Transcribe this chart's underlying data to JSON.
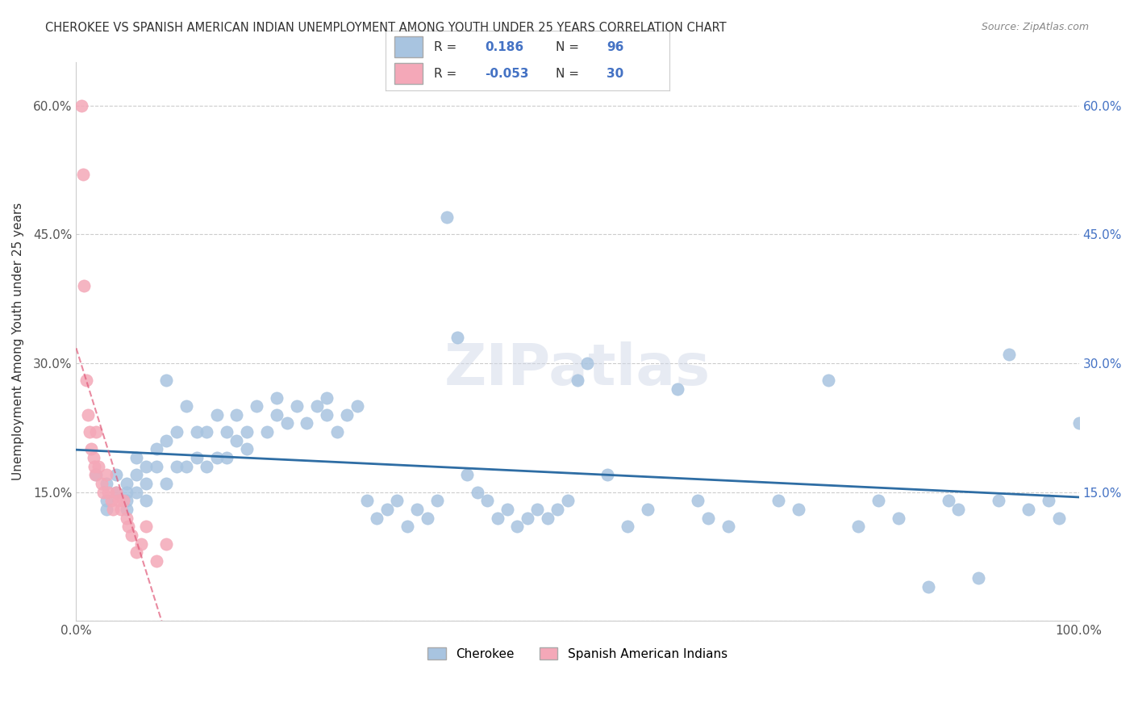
{
  "title": "CHEROKEE VS SPANISH AMERICAN INDIAN UNEMPLOYMENT AMONG YOUTH UNDER 25 YEARS CORRELATION CHART",
  "source": "Source: ZipAtlas.com",
  "ylabel": "Unemployment Among Youth under 25 years",
  "watermark": "ZIPatlas",
  "cherokee_R": 0.186,
  "cherokee_N": 96,
  "spanish_R": -0.053,
  "spanish_N": 30,
  "cherokee_color": "#a8c4e0",
  "cherokee_line_color": "#2e6da4",
  "spanish_color": "#f4a8b8",
  "spanish_line_color": "#e05878",
  "background_color": "#ffffff",
  "grid_color": "#cccccc",
  "xlim": [
    0.0,
    1.0
  ],
  "ylim": [
    0.0,
    0.65
  ],
  "xticks": [
    0.0,
    0.2,
    0.4,
    0.6,
    0.8,
    1.0
  ],
  "xticklabels": [
    "0.0%",
    "",
    "",
    "",
    "",
    "100.0%"
  ],
  "yticks": [
    0.0,
    0.15,
    0.3,
    0.45,
    0.6
  ],
  "yticklabels": [
    "",
    "15.0%",
    "30.0%",
    "45.0%",
    "60.0%"
  ],
  "cherokee_x": [
    0.02,
    0.03,
    0.03,
    0.03,
    0.04,
    0.04,
    0.05,
    0.05,
    0.05,
    0.05,
    0.06,
    0.06,
    0.06,
    0.07,
    0.07,
    0.07,
    0.08,
    0.08,
    0.09,
    0.09,
    0.09,
    0.1,
    0.1,
    0.11,
    0.11,
    0.12,
    0.12,
    0.13,
    0.13,
    0.14,
    0.14,
    0.15,
    0.15,
    0.16,
    0.16,
    0.17,
    0.17,
    0.18,
    0.19,
    0.2,
    0.2,
    0.21,
    0.22,
    0.23,
    0.24,
    0.25,
    0.25,
    0.26,
    0.27,
    0.28,
    0.29,
    0.3,
    0.31,
    0.32,
    0.33,
    0.34,
    0.35,
    0.36,
    0.37,
    0.38,
    0.39,
    0.4,
    0.41,
    0.42,
    0.43,
    0.44,
    0.45,
    0.46,
    0.47,
    0.48,
    0.49,
    0.5,
    0.51,
    0.53,
    0.55,
    0.57,
    0.6,
    0.62,
    0.63,
    0.65,
    0.7,
    0.72,
    0.75,
    0.78,
    0.8,
    0.82,
    0.85,
    0.87,
    0.88,
    0.9,
    0.92,
    0.93,
    0.95,
    0.97,
    0.98,
    1.0
  ],
  "cherokee_y": [
    0.17,
    0.16,
    0.14,
    0.13,
    0.17,
    0.15,
    0.16,
    0.15,
    0.14,
    0.13,
    0.19,
    0.17,
    0.15,
    0.18,
    0.16,
    0.14,
    0.2,
    0.18,
    0.16,
    0.21,
    0.28,
    0.18,
    0.22,
    0.18,
    0.25,
    0.19,
    0.22,
    0.18,
    0.22,
    0.19,
    0.24,
    0.19,
    0.22,
    0.21,
    0.24,
    0.2,
    0.22,
    0.25,
    0.22,
    0.24,
    0.26,
    0.23,
    0.25,
    0.23,
    0.25,
    0.24,
    0.26,
    0.22,
    0.24,
    0.25,
    0.14,
    0.12,
    0.13,
    0.14,
    0.11,
    0.13,
    0.12,
    0.14,
    0.47,
    0.33,
    0.17,
    0.15,
    0.14,
    0.12,
    0.13,
    0.11,
    0.12,
    0.13,
    0.12,
    0.13,
    0.14,
    0.28,
    0.3,
    0.17,
    0.11,
    0.13,
    0.27,
    0.14,
    0.12,
    0.11,
    0.14,
    0.13,
    0.28,
    0.11,
    0.14,
    0.12,
    0.04,
    0.14,
    0.13,
    0.05,
    0.14,
    0.31,
    0.13,
    0.14,
    0.12,
    0.23
  ],
  "spanish_x": [
    0.005,
    0.007,
    0.008,
    0.01,
    0.012,
    0.013,
    0.015,
    0.017,
    0.018,
    0.019,
    0.02,
    0.022,
    0.025,
    0.027,
    0.03,
    0.032,
    0.035,
    0.037,
    0.04,
    0.042,
    0.045,
    0.047,
    0.05,
    0.052,
    0.055,
    0.06,
    0.065,
    0.07,
    0.08,
    0.09
  ],
  "spanish_y": [
    0.6,
    0.52,
    0.39,
    0.28,
    0.24,
    0.22,
    0.2,
    0.19,
    0.18,
    0.17,
    0.22,
    0.18,
    0.16,
    0.15,
    0.17,
    0.15,
    0.14,
    0.13,
    0.15,
    0.14,
    0.13,
    0.14,
    0.12,
    0.11,
    0.1,
    0.08,
    0.09,
    0.11,
    0.07,
    0.09
  ]
}
